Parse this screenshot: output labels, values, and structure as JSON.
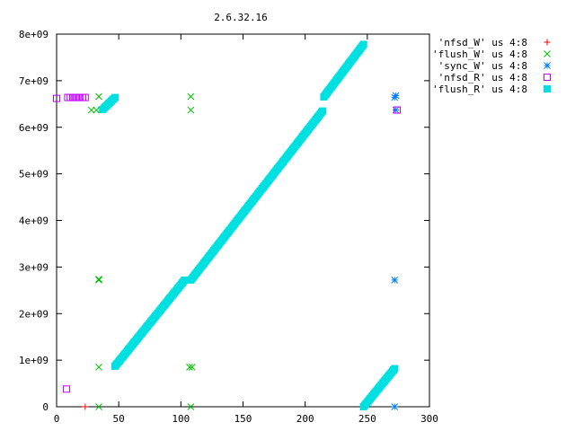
{
  "chart_data": {
    "type": "scatter",
    "title": "2.6.32.16",
    "xlabel": "",
    "ylabel": "",
    "xlim": [
      0,
      300
    ],
    "ylim": [
      0,
      8000000000
    ],
    "xticks": [
      {
        "v": 0,
        "label": "0"
      },
      {
        "v": 50,
        "label": "50"
      },
      {
        "v": 100,
        "label": "100"
      },
      {
        "v": 150,
        "label": "150"
      },
      {
        "v": 200,
        "label": "200"
      },
      {
        "v": 250,
        "label": "250"
      },
      {
        "v": 300,
        "label": "300"
      }
    ],
    "yticks": [
      {
        "v": 0,
        "label": "0"
      },
      {
        "v": 1000000000,
        "label": "1e+09"
      },
      {
        "v": 2000000000,
        "label": "2e+09"
      },
      {
        "v": 3000000000,
        "label": "3e+09"
      },
      {
        "v": 4000000000,
        "label": "4e+09"
      },
      {
        "v": 5000000000,
        "label": "5e+09"
      },
      {
        "v": 6000000000,
        "label": "6e+09"
      },
      {
        "v": 7000000000,
        "label": "7e+09"
      },
      {
        "v": 8000000000,
        "label": "8e+09"
      }
    ],
    "grid": false,
    "legend_position": "right",
    "series": [
      {
        "name": "'nfsd_W' us 4:8",
        "marker": "plus",
        "color": "#ff0000",
        "points": [
          [
            23,
            0
          ]
        ]
      },
      {
        "name": "'flush_W' us 4:8",
        "marker": "cross",
        "color": "#00c000",
        "points": [
          [
            34,
            0
          ],
          [
            108,
            0
          ],
          [
            34,
            850000000
          ],
          [
            107,
            850000000
          ],
          [
            109,
            850000000
          ],
          [
            34,
            2720000000
          ],
          [
            34,
            2740000000
          ],
          [
            28,
            6370000000
          ],
          [
            32,
            6370000000
          ],
          [
            36,
            6370000000
          ],
          [
            108,
            6370000000
          ],
          [
            34,
            6660000000
          ],
          [
            108,
            6660000000
          ]
        ]
      },
      {
        "name": "'sync_W' us 4:8",
        "marker": "star",
        "color": "#0080ff",
        "points": [
          [
            272,
            0
          ],
          [
            272,
            2720000000
          ],
          [
            273,
            6370000000
          ],
          [
            272,
            6640000000
          ],
          [
            273,
            6680000000
          ]
        ]
      },
      {
        "name": "'nfsd_R' us 4:8",
        "marker": "open-square",
        "color": "#c000ff",
        "points": [
          [
            0,
            6620000000
          ],
          [
            9,
            6640000000
          ],
          [
            11,
            6640000000
          ],
          [
            13,
            6640000000
          ],
          [
            15,
            6640000000
          ],
          [
            17,
            6640000000
          ],
          [
            19,
            6640000000
          ],
          [
            21,
            6640000000
          ],
          [
            23,
            6640000000
          ],
          [
            8,
            380000000
          ],
          [
            274,
            6370000000
          ]
        ]
      },
      {
        "name": "'flush_R' us 4:8",
        "marker": "filled-square",
        "color": "#00e0e0",
        "segments": [
          [
            [
              47,
              870000000
            ],
            [
              103,
              2720000000
            ]
          ],
          [
            [
              108,
              2720000000
            ],
            [
              214,
              6350000000
            ]
          ],
          [
            [
              215,
              6650000000
            ],
            [
              247,
              7780000000
            ]
          ],
          [
            [
              37,
              6380000000
            ],
            [
              47,
              6640000000
            ]
          ],
          [
            [
              247,
              0
            ],
            [
              272,
              820000000
            ]
          ]
        ]
      }
    ]
  }
}
